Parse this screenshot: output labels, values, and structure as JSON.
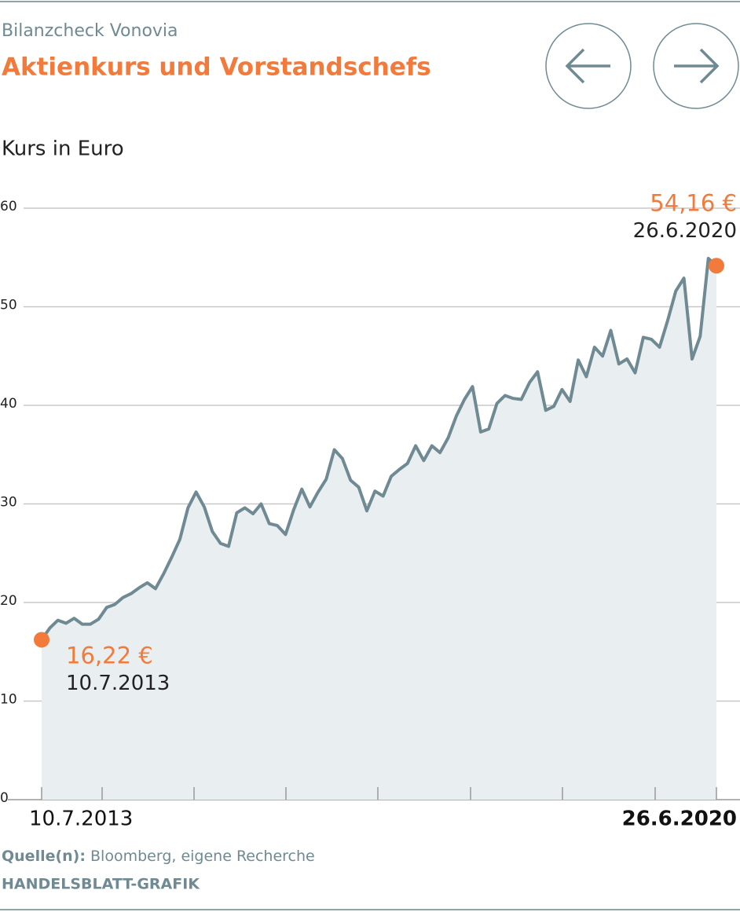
{
  "chart_data": {
    "type": "line",
    "subtitle": "Bilanzcheck Vonovia",
    "title": "Aktienkurs und Vorstandschefs",
    "y_label": "Kurs in Euro",
    "categories": [
      "10.7.2013",
      null,
      null,
      null,
      null,
      null,
      null,
      null,
      null,
      null,
      null,
      null,
      null,
      null,
      null,
      null,
      null,
      null,
      null,
      null,
      null,
      null,
      null,
      null,
      null,
      null,
      null,
      null,
      null,
      null,
      null,
      null,
      null,
      null,
      null,
      null,
      null,
      null,
      null,
      null,
      null,
      null,
      null,
      null,
      null,
      null,
      null,
      null,
      null,
      null,
      null,
      null,
      null,
      null,
      null,
      null,
      null,
      null,
      null,
      null,
      null,
      null,
      null,
      null,
      null,
      null,
      null,
      null,
      null,
      null,
      null,
      null,
      null,
      null,
      null,
      null,
      null,
      null,
      null,
      null,
      null,
      null,
      null,
      "26.6.2020"
    ],
    "values": [
      16.22,
      17.4,
      18.2,
      17.9,
      18.4,
      17.8,
      17.8,
      18.3,
      19.5,
      19.8,
      20.5,
      20.9,
      21.5,
      22.0,
      21.4,
      22.9,
      24.6,
      26.4,
      29.6,
      31.2,
      29.7,
      27.2,
      26.0,
      25.7,
      29.1,
      29.6,
      29.0,
      30.0,
      28.0,
      27.8,
      26.9,
      29.4,
      31.5,
      29.7,
      31.2,
      32.5,
      35.5,
      34.6,
      32.4,
      31.7,
      29.3,
      31.3,
      30.8,
      32.8,
      33.5,
      34.1,
      35.9,
      34.4,
      35.9,
      35.2,
      36.7,
      38.9,
      40.6,
      41.9,
      37.3,
      37.6,
      40.2,
      41.0,
      40.7,
      40.6,
      42.3,
      43.4,
      39.5,
      39.9,
      41.6,
      40.4,
      44.6,
      42.9,
      45.9,
      45.0,
      47.6,
      44.2,
      44.7,
      43.3,
      46.9,
      46.7,
      45.9,
      48.6,
      51.6,
      52.9,
      44.7,
      47.0,
      54.9,
      54.16
    ],
    "value_labels": [
      "16,22 €",
      null,
      null,
      null,
      null,
      null,
      null,
      null,
      null,
      null,
      null,
      null,
      null,
      null,
      null,
      null,
      null,
      null,
      null,
      null,
      null,
      null,
      null,
      null,
      null,
      null,
      null,
      null,
      null,
      null,
      null,
      null,
      null,
      null,
      null,
      null,
      null,
      null,
      null,
      null,
      null,
      null,
      null,
      null,
      null,
      null,
      null,
      null,
      null,
      null,
      null,
      null,
      null,
      null,
      null,
      null,
      null,
      null,
      null,
      null,
      null,
      null,
      null,
      null,
      null,
      null,
      null,
      null,
      null,
      null,
      null,
      null,
      null,
      null,
      null,
      null,
      null,
      null,
      null,
      null,
      null,
      null,
      null,
      "54,16 €"
    ],
    "color": "#6f8a93",
    "area_color": "#e9eef1",
    "highlight_color": "#f27b3c",
    "ylim": [
      0,
      60
    ],
    "yticks": [
      0,
      10,
      20,
      30,
      40,
      50,
      60
    ],
    "grid": true,
    "source_label": "Quelle(n):",
    "source": "Bloomberg, eigene Recherche",
    "credit": "HANDELSBLATT-GRAFIK"
  }
}
